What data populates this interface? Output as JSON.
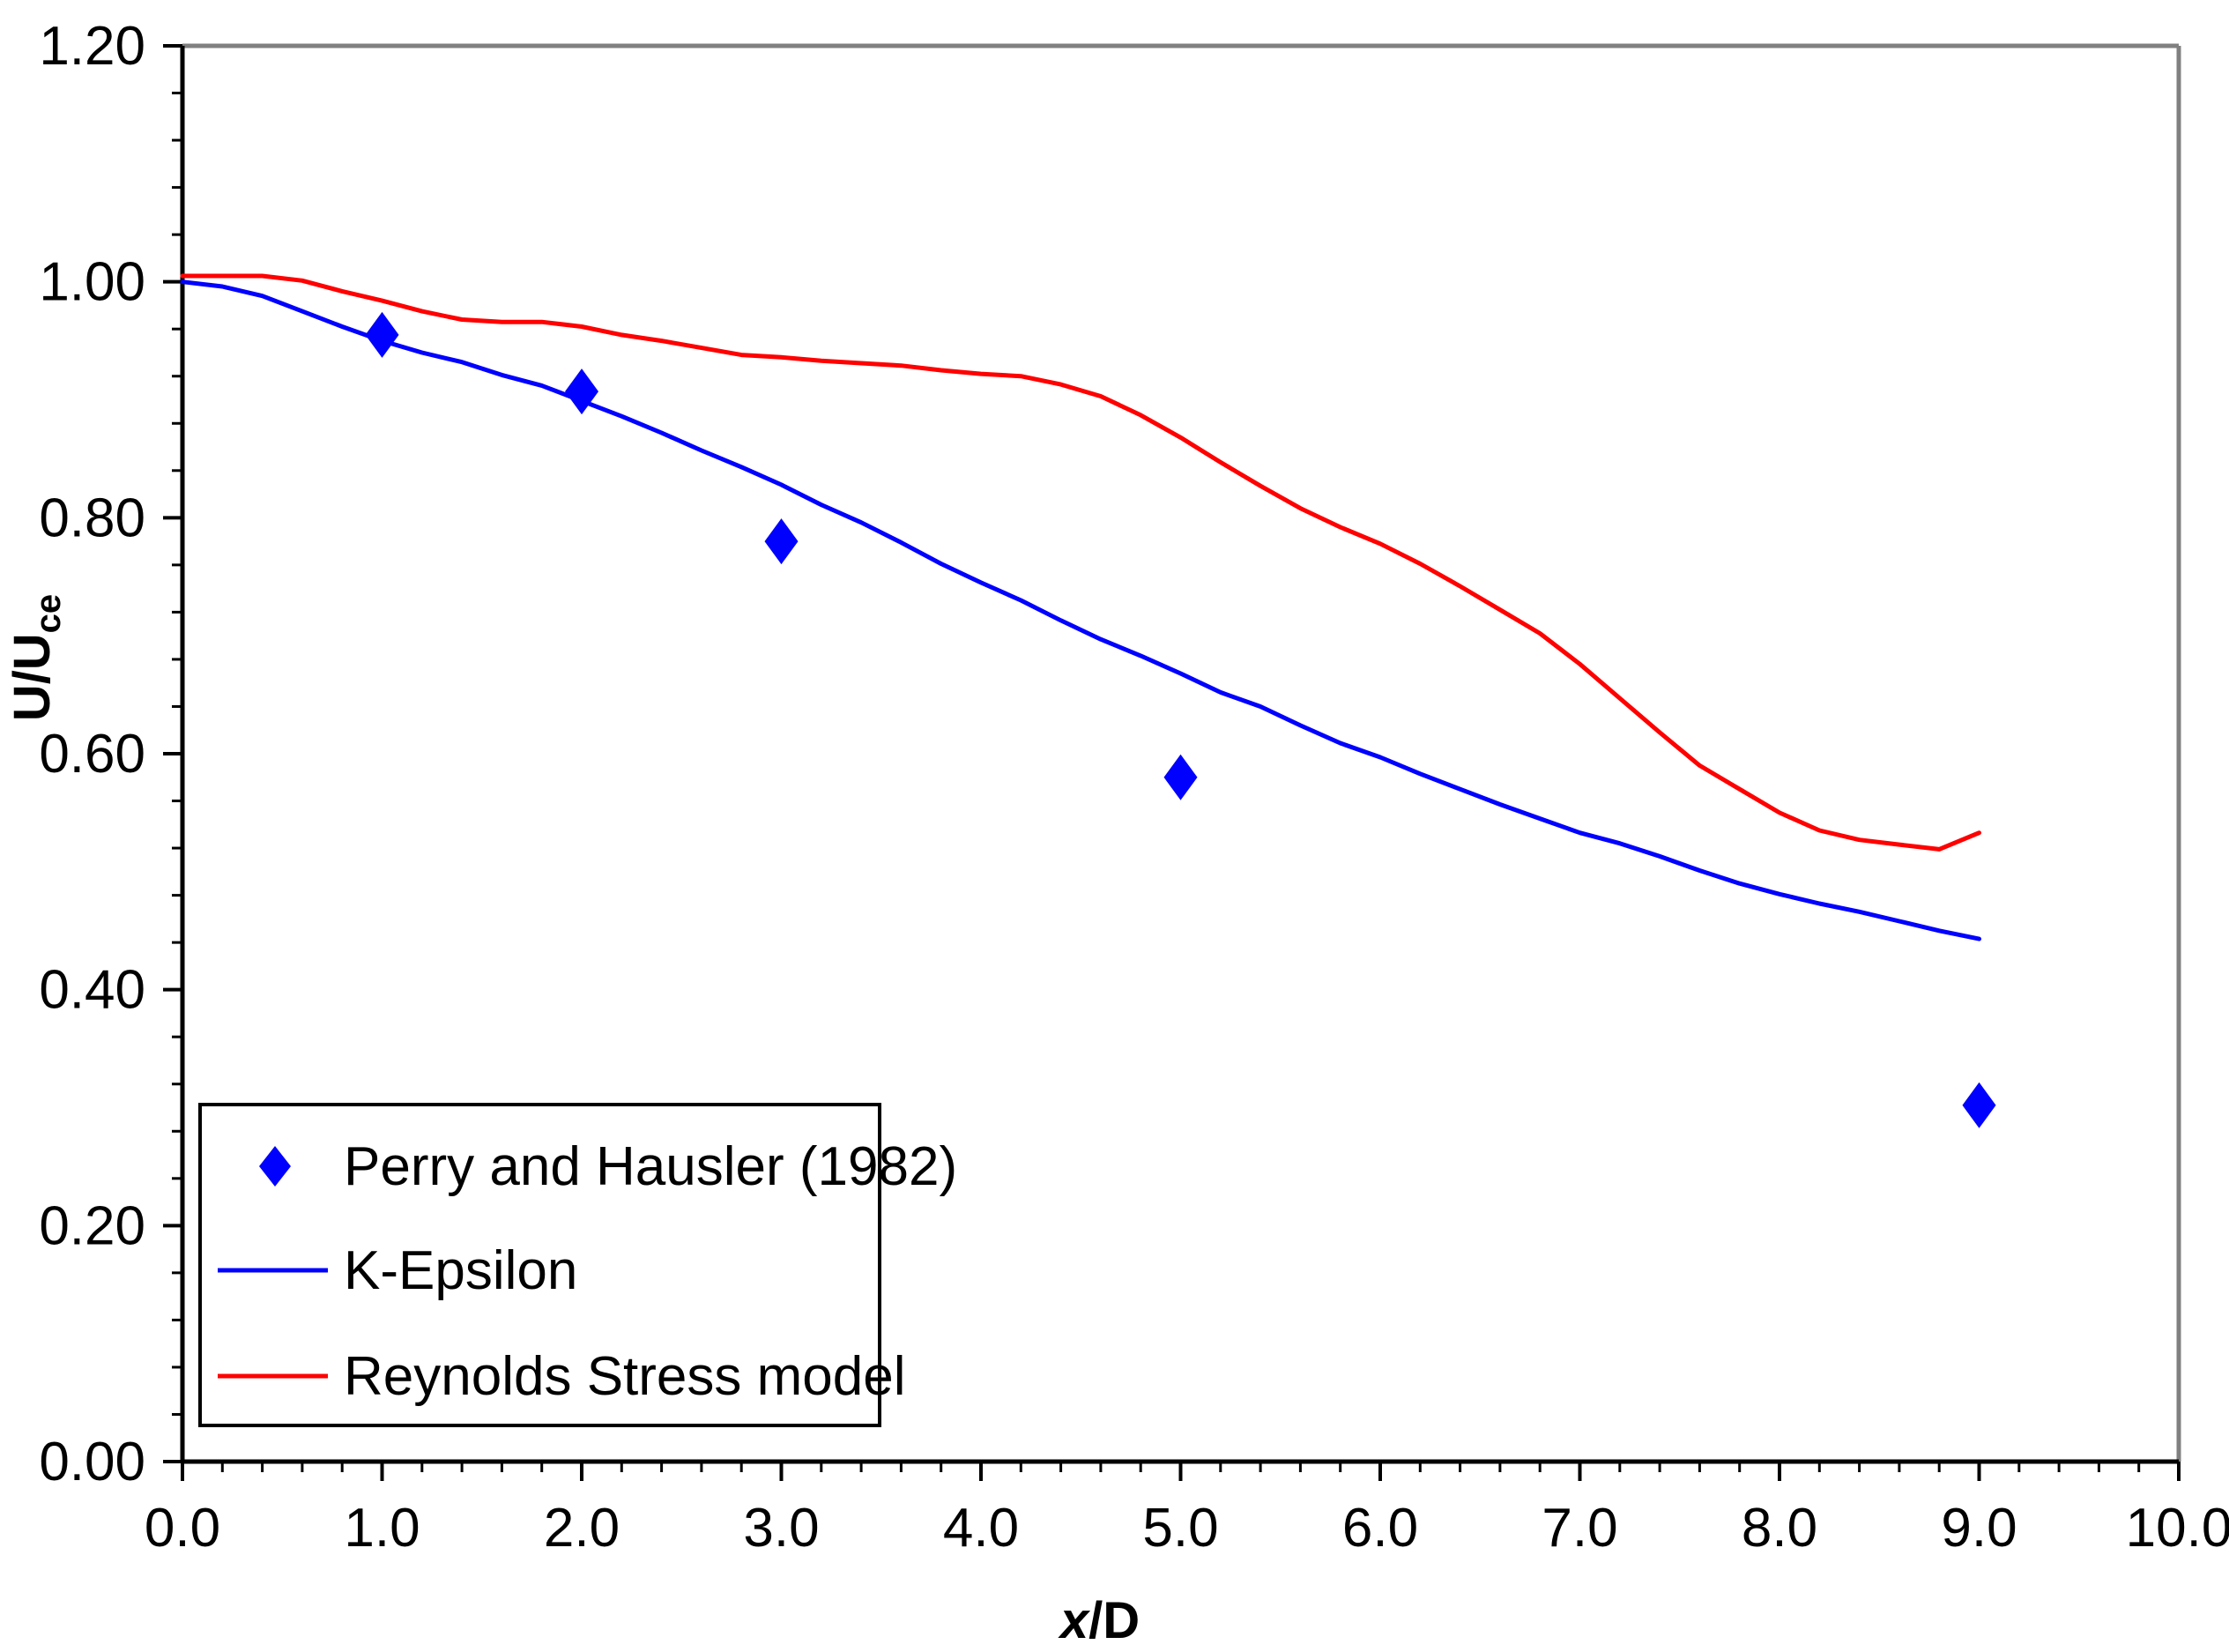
{
  "chart_data": {
    "type": "line",
    "title": "",
    "xlabel": {
      "italic": "x",
      "rest": "/D"
    },
    "ylabel": {
      "main": "U/U",
      "sub": "ce"
    },
    "xlim": [
      0,
      10
    ],
    "ylim": [
      0,
      1.2
    ],
    "x_major_step": 1,
    "y_major_step": 0.2,
    "x_minor_step": 0.2,
    "y_minor_step": 0.04,
    "x_decimals": 1,
    "y_decimals": 2,
    "grid": false,
    "legend_position": "bottom-left",
    "colors": {
      "experiment": "#0000ff",
      "k_epsilon": "#0000ff",
      "rsm": "#ff0000",
      "frame_right_top": "#808080",
      "axis": "#000000"
    },
    "series": [
      {
        "name": "Perry and Hausler (1982)",
        "kind": "marker",
        "marker": "diamond",
        "color": "#0000ff",
        "x": [
          1.0,
          2.0,
          3.0,
          5.0,
          9.0
        ],
        "y": [
          0.955,
          0.907,
          0.78,
          0.58,
          0.302
        ]
      },
      {
        "name": "K-Epsilon",
        "kind": "line",
        "color": "#0000ff",
        "x": [
          0.0,
          0.2,
          0.4,
          0.6,
          0.8,
          1.0,
          1.2,
          1.4,
          1.6,
          1.8,
          2.0,
          2.2,
          2.4,
          2.6,
          2.8,
          3.0,
          3.2,
          3.4,
          3.6,
          3.8,
          4.0,
          4.2,
          4.4,
          4.6,
          4.8,
          5.0,
          5.2,
          5.4,
          5.6,
          5.8,
          6.0,
          6.2,
          6.4,
          6.6,
          6.8,
          7.0,
          7.2,
          7.4,
          7.6,
          7.8,
          8.0,
          8.2,
          8.4,
          8.6,
          8.8,
          9.0
        ],
        "y": [
          1.0,
          0.996,
          0.988,
          0.975,
          0.962,
          0.95,
          0.94,
          0.932,
          0.921,
          0.912,
          0.899,
          0.886,
          0.872,
          0.857,
          0.843,
          0.828,
          0.811,
          0.796,
          0.779,
          0.761,
          0.745,
          0.73,
          0.713,
          0.697,
          0.683,
          0.668,
          0.652,
          0.64,
          0.624,
          0.609,
          0.597,
          0.583,
          0.57,
          0.557,
          0.545,
          0.533,
          0.524,
          0.513,
          0.501,
          0.49,
          0.481,
          0.473,
          0.466,
          0.458,
          0.45,
          0.443
        ]
      },
      {
        "name": "Reynolds Stress model",
        "kind": "line",
        "color": "#ff0000",
        "x": [
          0.0,
          0.2,
          0.4,
          0.6,
          0.8,
          1.0,
          1.2,
          1.4,
          1.6,
          1.8,
          2.0,
          2.2,
          2.4,
          2.6,
          2.8,
          3.0,
          3.2,
          3.4,
          3.6,
          3.8,
          4.0,
          4.2,
          4.4,
          4.6,
          4.8,
          5.0,
          5.2,
          5.4,
          5.6,
          5.8,
          6.0,
          6.2,
          6.4,
          6.6,
          6.8,
          7.0,
          7.2,
          7.4,
          7.6,
          7.8,
          8.0,
          8.2,
          8.4,
          8.6,
          8.8,
          9.0
        ],
        "y": [
          1.005,
          1.005,
          1.005,
          1.001,
          0.992,
          0.984,
          0.975,
          0.968,
          0.966,
          0.966,
          0.962,
          0.955,
          0.95,
          0.944,
          0.938,
          0.936,
          0.933,
          0.931,
          0.929,
          0.925,
          0.922,
          0.92,
          0.913,
          0.903,
          0.887,
          0.868,
          0.847,
          0.827,
          0.808,
          0.792,
          0.778,
          0.761,
          0.742,
          0.722,
          0.702,
          0.676,
          0.647,
          0.618,
          0.59,
          0.57,
          0.55,
          0.535,
          0.527,
          0.523,
          0.519,
          0.533
        ]
      }
    ]
  }
}
